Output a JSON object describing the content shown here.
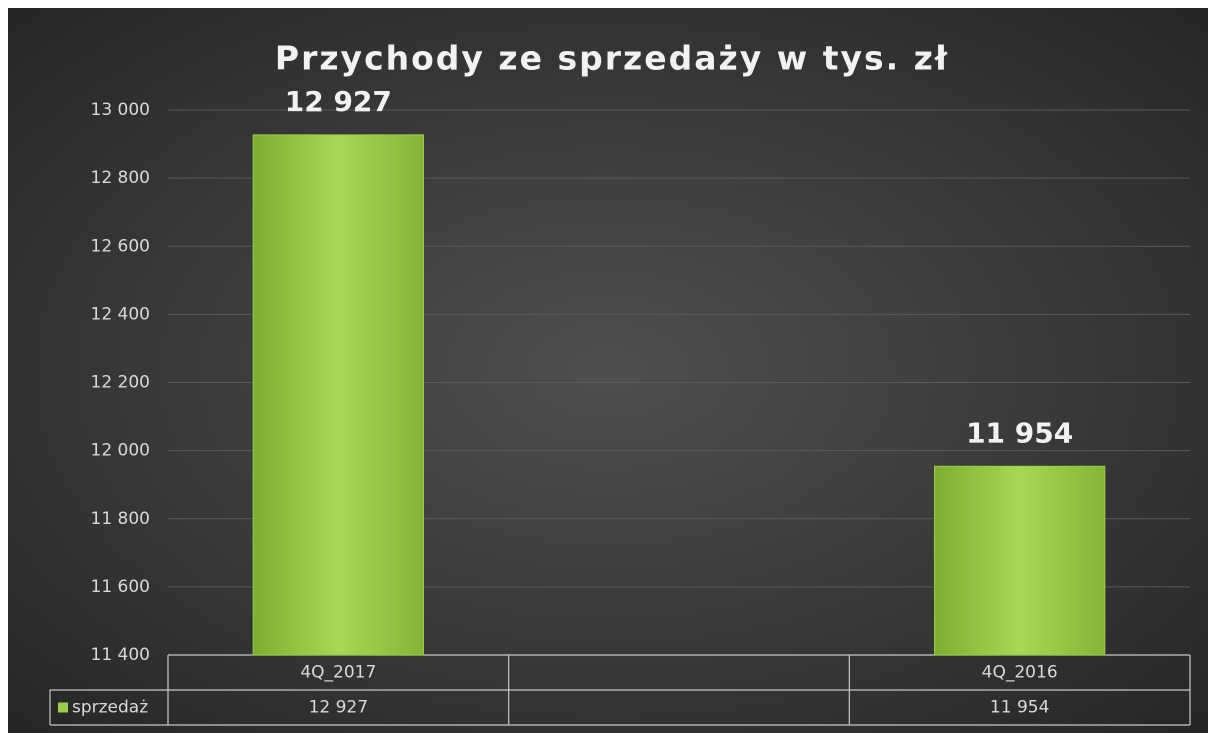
{
  "chart_data": {
    "type": "bar",
    "title": "Przychody ze sprzedaży w tys. zł",
    "categories": [
      "4Q_2017",
      null,
      "4Q_2016"
    ],
    "series": [
      {
        "name": "sprzedaż",
        "color": "#9acd4a",
        "values": [
          12927,
          null,
          11954
        ],
        "value_labels": [
          "12 927",
          null,
          "11 954"
        ]
      }
    ],
    "ylim": [
      11400,
      13000
    ],
    "yticks": [
      {
        "value": 11400,
        "label": "11 400"
      },
      {
        "value": 11600,
        "label": "11 600"
      },
      {
        "value": 11800,
        "label": "11 800"
      },
      {
        "value": 12000,
        "label": "12 000"
      },
      {
        "value": 12200,
        "label": "12 200"
      },
      {
        "value": 12400,
        "label": "12 400"
      },
      {
        "value": 12600,
        "label": "12 600"
      },
      {
        "value": 12800,
        "label": "12 800"
      },
      {
        "value": 13000,
        "label": "13 000"
      }
    ],
    "grid": true,
    "data_table": true
  }
}
